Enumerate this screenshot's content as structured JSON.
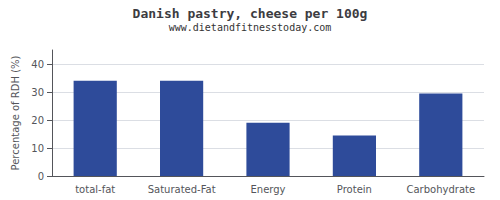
{
  "chart_data": {
    "type": "bar",
    "title": "Danish pastry, cheese per 100g",
    "subtitle": "www.dietandfitnesstoday.com",
    "categories": [
      "total-fat",
      "Saturated-Fat",
      "Energy",
      "Protein",
      "Carbohydrate"
    ],
    "values": [
      34,
      34,
      19,
      14.5,
      29.5
    ],
    "color": "#2e4b9a",
    "ylabel": "Percentage of RDH (%)",
    "ylim": [
      0,
      45
    ],
    "yticks": [
      0,
      10,
      20,
      30,
      40
    ],
    "grid": true
  }
}
